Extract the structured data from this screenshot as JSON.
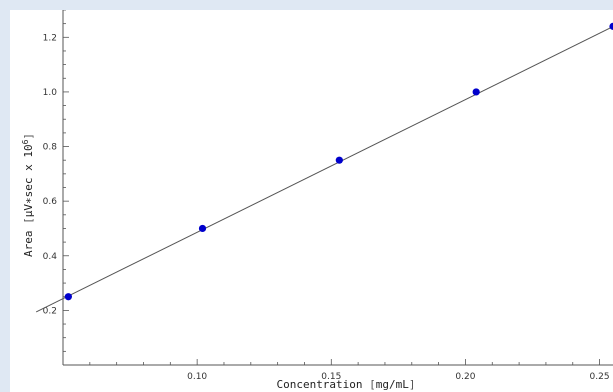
{
  "chart_data": {
    "type": "scatter",
    "title": "",
    "xlabel": "Concentration",
    "xunit": "mg/mL",
    "ylabel": "Area",
    "yunit": "μV∗sec x 10",
    "yunit_exponent": "6",
    "xlim": [
      0.05,
      0.255
    ],
    "ylim": [
      0.0,
      1.3
    ],
    "xticks": [
      0.1,
      0.15,
      0.2,
      0.25
    ],
    "xtick_labels": [
      "0.10",
      "0.15",
      "0.20",
      "0.25"
    ],
    "yticks": [
      0.2,
      0.4,
      0.6,
      0.8,
      1.0,
      1.2
    ],
    "ytick_labels": [
      "0.2",
      "0.4",
      "0.6",
      "0.8",
      "1.0",
      "1.2"
    ],
    "grid": false,
    "legend": "none",
    "series": [
      {
        "x": [
          0.052,
          0.102,
          0.153,
          0.204,
          0.255
        ],
        "y": [
          0.25,
          0.5,
          0.75,
          1.0,
          1.24
        ],
        "color": "#0000cc",
        "marker": "circle"
      }
    ],
    "fit_line": {
      "slope": 4.86,
      "intercept": 0.0
    }
  },
  "colors": {
    "axis": "#555555",
    "fit": "#555555",
    "point": "#0000cc",
    "background": "#dfe8f3"
  }
}
